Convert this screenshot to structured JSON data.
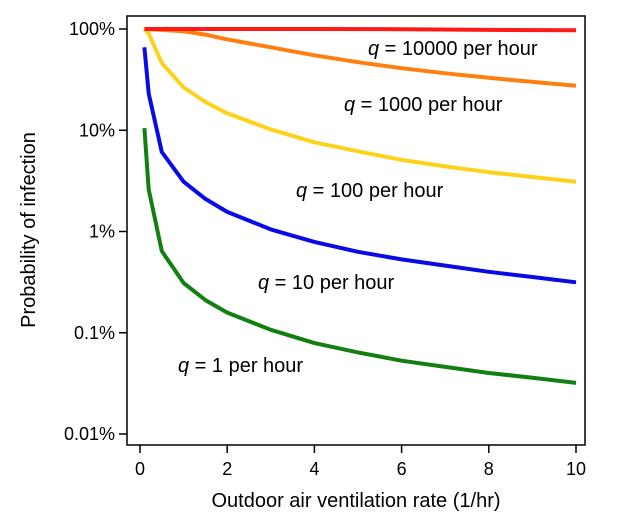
{
  "chart_data": {
    "type": "line",
    "title": "",
    "xlabel": "Outdoor air ventilation rate (1/hr)",
    "ylabel": "Probability of infection",
    "xlim": [
      0,
      10
    ],
    "ylim": [
      0.01,
      100
    ],
    "yscale": "log",
    "grid": false,
    "x_ticks": [
      0,
      2,
      4,
      6,
      8,
      10
    ],
    "x_tick_labels": [
      "0",
      "2",
      "4",
      "6",
      "8",
      "10"
    ],
    "y_ticks": [
      0.01,
      0.1,
      1,
      10,
      100
    ],
    "y_tick_labels": [
      "0.01%",
      "0.1%",
      "1%",
      "10%",
      "100%"
    ],
    "series": [
      {
        "q": "q",
        "label_rest": " = 1 per hour",
        "color": "#118011",
        "points": [
          [
            0.1,
            10.5
          ],
          [
            0.2,
            2.6
          ],
          [
            0.5,
            0.64
          ],
          [
            1,
            0.31
          ],
          [
            1.5,
            0.21
          ],
          [
            2,
            0.158
          ],
          [
            3,
            0.107
          ],
          [
            4,
            0.079
          ],
          [
            5,
            0.064
          ],
          [
            6,
            0.053
          ],
          [
            7,
            0.046
          ],
          [
            8,
            0.04
          ],
          [
            9,
            0.036
          ],
          [
            10,
            0.032
          ]
        ]
      },
      {
        "q": "q",
        "label_rest": " = 10 per hour",
        "color": "#0a0ae6",
        "points": [
          [
            0.1,
            66
          ],
          [
            0.2,
            23
          ],
          [
            0.5,
            6.1
          ],
          [
            1,
            3.1
          ],
          [
            1.5,
            2.1
          ],
          [
            2,
            1.56
          ],
          [
            3,
            1.05
          ],
          [
            4,
            0.79
          ],
          [
            5,
            0.63
          ],
          [
            6,
            0.53
          ],
          [
            7,
            0.46
          ],
          [
            8,
            0.4
          ],
          [
            9,
            0.355
          ],
          [
            10,
            0.315
          ]
        ]
      },
      {
        "q": "q",
        "label_rest": " = 100 per hour",
        "color": "#ffd21a",
        "points": [
          [
            0.1,
            100
          ],
          [
            0.2,
            90
          ],
          [
            0.5,
            46
          ],
          [
            1,
            26.5
          ],
          [
            1.5,
            19
          ],
          [
            2,
            14.7
          ],
          [
            3,
            10.2
          ],
          [
            4,
            7.6
          ],
          [
            5,
            6.2
          ],
          [
            6,
            5.1
          ],
          [
            7,
            4.4
          ],
          [
            8,
            3.85
          ],
          [
            9,
            3.45
          ],
          [
            10,
            3.1
          ]
        ]
      },
      {
        "q": "q",
        "label_rest": " = 1000 per hour",
        "color": "#ff7f0e",
        "points": [
          [
            0.1,
            100
          ],
          [
            0.5,
            98
          ],
          [
            1,
            95
          ],
          [
            1.5,
            88
          ],
          [
            2,
            79
          ],
          [
            3,
            66
          ],
          [
            4,
            55
          ],
          [
            5,
            47
          ],
          [
            6,
            41
          ],
          [
            7,
            36.5
          ],
          [
            8,
            33
          ],
          [
            9,
            30
          ],
          [
            10,
            27.5
          ]
        ]
      },
      {
        "q": "q",
        "label_rest": " = 10000 per hour",
        "color": "#ff1a1a",
        "points": [
          [
            0.1,
            100
          ],
          [
            1,
            100
          ],
          [
            2,
            100
          ],
          [
            4,
            100
          ],
          [
            6,
            99.5
          ],
          [
            8,
            98
          ],
          [
            10,
            97
          ]
        ]
      }
    ]
  }
}
